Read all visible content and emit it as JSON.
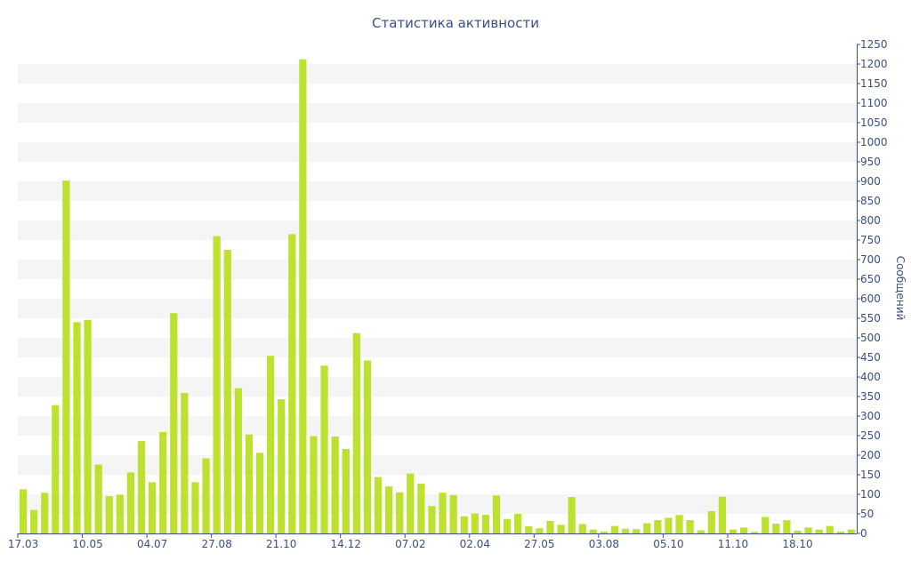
{
  "chart_data": {
    "type": "bar",
    "title": "Статистика активности",
    "xlabel": "",
    "ylabel": "Сообщений",
    "ylim": [
      0,
      1250
    ],
    "y_ticks": [
      0,
      50,
      100,
      150,
      200,
      250,
      300,
      350,
      400,
      450,
      500,
      550,
      600,
      650,
      700,
      750,
      800,
      850,
      900,
      950,
      1000,
      1050,
      1100,
      1150,
      1200,
      1250
    ],
    "y_axis_position": "right",
    "grid": "horizontal alternating bands",
    "x_tick_labels": [
      {
        "label": "17.03",
        "index": 0
      },
      {
        "label": "10.05",
        "index": 6
      },
      {
        "label": "04.07",
        "index": 12
      },
      {
        "label": "27.08",
        "index": 18
      },
      {
        "label": "21.10",
        "index": 24
      },
      {
        "label": "14.12",
        "index": 30
      },
      {
        "label": "07.02",
        "index": 36
      },
      {
        "label": "02.04",
        "index": 42
      },
      {
        "label": "27.05",
        "index": 48
      },
      {
        "label": "03.08",
        "index": 54
      },
      {
        "label": "05.10",
        "index": 60
      },
      {
        "label": "11.10",
        "index": 66
      },
      {
        "label": "18.10",
        "index": 72
      }
    ],
    "values": [
      113,
      60,
      104,
      328,
      902,
      540,
      546,
      176,
      95,
      99,
      156,
      236,
      131,
      259,
      563,
      359,
      131,
      192,
      760,
      725,
      371,
      253,
      206,
      454,
      343,
      765,
      1212,
      249,
      429,
      248,
      216,
      512,
      442,
      144,
      120,
      105,
      153,
      127,
      70,
      104,
      98,
      44,
      51,
      48,
      97,
      37,
      50,
      18,
      13,
      32,
      22,
      93,
      24,
      10,
      5,
      19,
      12,
      11,
      26,
      34,
      40,
      47,
      34,
      8,
      57,
      94,
      10,
      15,
      4,
      42,
      25,
      34,
      7,
      15,
      10,
      19,
      5,
      10
    ],
    "colors": {
      "bar": "#bce12e",
      "text": "#3b4e86",
      "axis": "#3b4e86",
      "band": "#f5f5f5"
    }
  }
}
